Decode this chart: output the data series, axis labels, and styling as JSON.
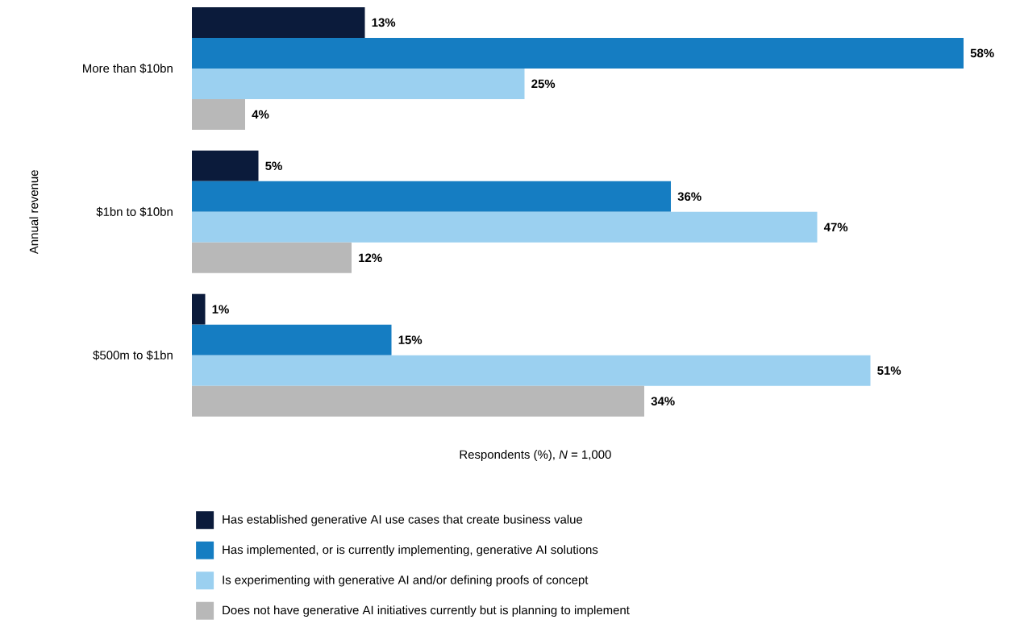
{
  "chart_data": {
    "type": "bar",
    "orientation": "horizontal",
    "xlabel": "Respondents (%), *N* = 1,000",
    "ylabel": "Annual revenue",
    "categories": [
      "More than $10bn",
      "$1bn to $10bn",
      "$500m to $1bn"
    ],
    "xlim": [
      0,
      58
    ],
    "tick_labels": "y",
    "legend": "bottom",
    "series": [
      {
        "name": "Has established generative AI use cases that create business value",
        "color": "#0b1b3b",
        "values": [
          13,
          5,
          1
        ],
        "value_labels": [
          "13%",
          "5%",
          "1%"
        ]
      },
      {
        "name": "Has implemented, or is currently implementing, generative AI solutions",
        "color": "#157dc2",
        "values": [
          58,
          36,
          15
        ],
        "value_labels": [
          "58%",
          "36%",
          "15%"
        ]
      },
      {
        "name": "Is experimenting with generative AI and/or defining proofs of concept",
        "color": "#9bd0f0",
        "values": [
          25,
          47,
          51
        ],
        "value_labels": [
          "25%",
          "47%",
          "51%"
        ]
      },
      {
        "name": "Does not have generative AI initiatives currently but is planning to implement",
        "color": "#b8b8b8",
        "values": [
          4,
          12,
          34
        ],
        "value_labels": [
          "4%",
          "12%",
          "34%"
        ]
      }
    ]
  }
}
